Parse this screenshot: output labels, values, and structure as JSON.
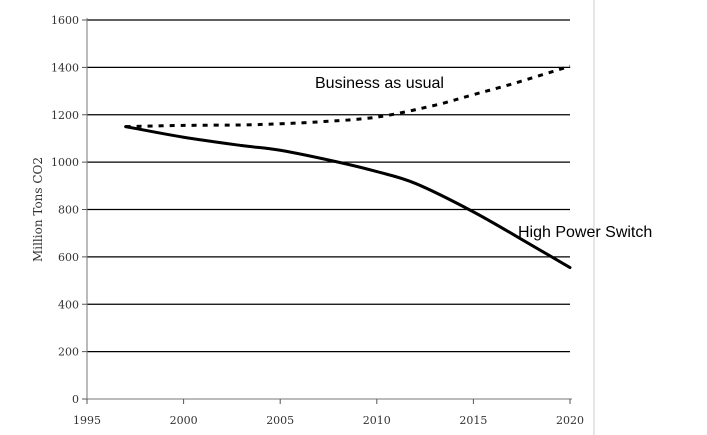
{
  "chart_data": {
    "type": "line",
    "title": "",
    "xlabel": "",
    "ylabel": "Million Tons CO2",
    "xlim": [
      1995,
      2020
    ],
    "ylim": [
      0,
      1600
    ],
    "x_ticks": [
      1995,
      2000,
      2005,
      2010,
      2015,
      2020
    ],
    "y_ticks": [
      0,
      200,
      400,
      600,
      800,
      1000,
      1200,
      1400,
      1600
    ],
    "grid": true,
    "legend": "none",
    "series": [
      {
        "name": "Business as usual",
        "style": "dotted",
        "color": "#000000",
        "x": [
          1997,
          2000,
          2003,
          2005,
          2007,
          2010,
          2013,
          2015,
          2017,
          2020
        ],
        "y": [
          1150,
          1155,
          1157,
          1162,
          1170,
          1190,
          1240,
          1285,
          1330,
          1405
        ]
      },
      {
        "name": "High Power Switch",
        "style": "solid",
        "color": "#000000",
        "x": [
          1997,
          2000,
          2003,
          2005,
          2008,
          2010,
          2012,
          2015,
          2018,
          2020
        ],
        "y": [
          1150,
          1105,
          1070,
          1050,
          1000,
          960,
          910,
          790,
          650,
          555
        ]
      }
    ]
  }
}
